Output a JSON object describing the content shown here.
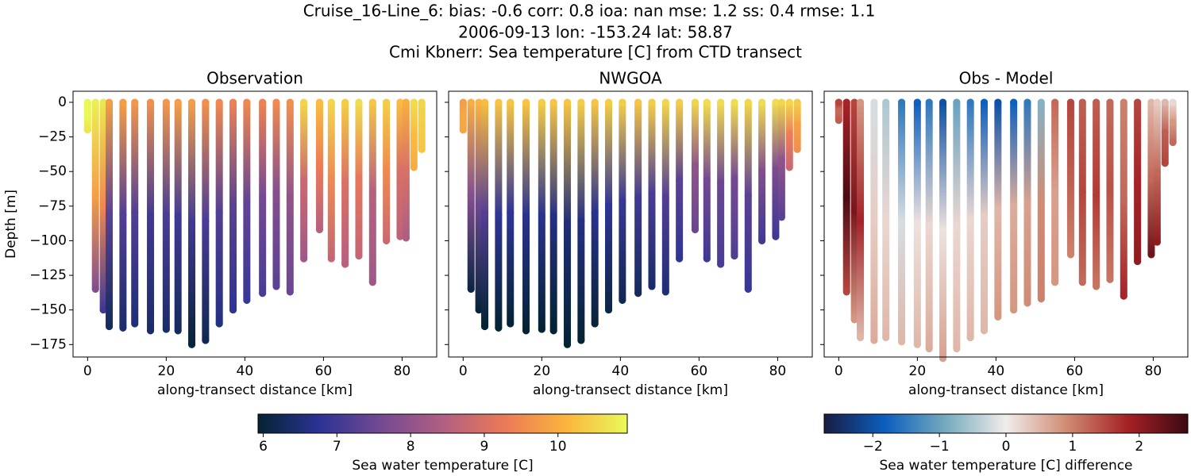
{
  "suptitle": [
    "Cruise_16-Line_6: bias: -0.6  corr: 0.8  ioa: nan  mse: 1.2  ss: 0.4  rmse: 1.1",
    "2006-09-13 lon: -153.24 lat: 58.87",
    "Cmi Kbnerr: Sea temperature [C] from CTD transect"
  ],
  "chart_data": [
    {
      "type": "scatter",
      "title": "Observation",
      "xlabel": "along-transect distance [km]",
      "ylabel": "Depth [m]",
      "x": [
        0,
        2,
        4,
        5.5,
        9,
        12,
        16,
        20,
        23,
        26.5,
        30,
        33.5,
        37,
        40.5,
        44.5,
        48,
        51.5,
        55,
        59,
        62,
        65.5,
        69,
        72.5,
        76,
        79.5,
        81,
        83,
        85
      ],
      "depth": [
        -20,
        -135,
        -150,
        -162,
        -163,
        -160,
        -165,
        -164,
        -165,
        -175,
        -172,
        -160,
        -150,
        -143,
        -138,
        -133,
        -137,
        -113,
        -92,
        -113,
        -117,
        -111,
        -130,
        -100,
        -97,
        -98,
        -47,
        -34
      ],
      "surface": [
        10.9,
        10.8,
        10.7,
        9.8,
        9.8,
        9.7,
        9.6,
        9.7,
        9.8,
        9.8,
        9.6,
        9.5,
        9.4,
        9.5,
        9.4,
        9.5,
        9.6,
        10.5,
        10.2,
        10.5,
        10.4,
        10.6,
        10.3,
        10.4,
        10.2,
        10.0,
        10.6,
        10.5
      ],
      "mid": [
        10.9,
        9.8,
        9.5,
        7.3,
        7.2,
        7.2,
        7.0,
        7.1,
        7.0,
        7.0,
        7.1,
        7.2,
        7.3,
        7.4,
        7.6,
        7.8,
        8.0,
        8.8,
        9.3,
        9.5,
        9.0,
        9.2,
        8.5,
        9.5,
        9.0,
        9.0,
        10.2,
        10.4
      ],
      "bottom": [
        10.7,
        7.8,
        7.0,
        6.3,
        6.4,
        6.5,
        6.4,
        6.4,
        6.3,
        6.0,
        6.2,
        6.6,
        6.8,
        6.9,
        7.1,
        7.3,
        7.5,
        8.2,
        8.5,
        8.7,
        8.5,
        8.7,
        8.2,
        8.8,
        8.6,
        8.4,
        10.0,
        10.3
      ],
      "xlim": [
        -3.7,
        88.8
      ],
      "ylim": [
        8,
        -184
      ],
      "xticks": [
        0,
        20,
        40,
        60,
        80
      ],
      "yticks": [
        0,
        {
          "value": -25,
          "label": "−25"
        },
        {
          "value": -50,
          "label": "−50"
        },
        {
          "value": -75,
          "label": "−75"
        },
        {
          "value": -100,
          "label": "−100"
        },
        {
          "value": -125,
          "label": "−125"
        },
        {
          "value": -150,
          "label": "−150"
        },
        {
          "value": -175,
          "label": "−175"
        }
      ],
      "ytick_labels": true,
      "colorbar": {
        "label": "Sea water temperature [C]",
        "lim": [
          5.93,
          10.94
        ],
        "ticks": [
          6,
          7,
          8,
          9,
          10
        ],
        "colormap": [
          "#042333",
          "#2c3395",
          "#744992",
          "#b15f82",
          "#eb7958",
          "#fbb43d",
          "#e8fa5b"
        ]
      }
    },
    {
      "type": "scatter",
      "title": "NWGOA",
      "xlabel": "along-transect distance [km]",
      "x": [
        0,
        2,
        4,
        5.5,
        9,
        12,
        16,
        20,
        23,
        26.5,
        30,
        33.5,
        37,
        40.5,
        44.5,
        48,
        51.5,
        55,
        59,
        62,
        65.5,
        69,
        72.5,
        76,
        79.5,
        81,
        83,
        85
      ],
      "depth": [
        -20,
        -135,
        -150,
        -162,
        -163,
        -160,
        -165,
        -164,
        -165,
        -175,
        -172,
        -160,
        -150,
        -143,
        -138,
        -133,
        -137,
        -113,
        -92,
        -113,
        -117,
        -111,
        -135,
        -100,
        -97,
        -83,
        -47,
        -34
      ],
      "surface": [
        9.8,
        10.0,
        10.1,
        10.2,
        10.3,
        10.3,
        10.3,
        10.4,
        10.3,
        10.3,
        10.4,
        10.3,
        10.4,
        10.4,
        10.3,
        10.4,
        10.5,
        10.4,
        10.5,
        10.6,
        10.6,
        10.6,
        10.5,
        10.6,
        10.6,
        10.5,
        10.5,
        10.4
      ],
      "mid": [
        9.9,
        7.8,
        7.5,
        7.2,
        6.8,
        6.8,
        6.7,
        6.7,
        6.6,
        6.5,
        6.6,
        6.7,
        6.8,
        6.9,
        7.0,
        7.1,
        7.2,
        7.3,
        8.0,
        7.6,
        7.5,
        7.6,
        7.3,
        7.8,
        7.7,
        8.0,
        9.3,
        9.8
      ],
      "bottom": [
        9.9,
        6.1,
        6.0,
        5.9,
        5.9,
        5.9,
        5.9,
        5.9,
        5.9,
        5.9,
        5.9,
        6.0,
        6.1,
        6.2,
        6.3,
        6.4,
        6.5,
        6.8,
        7.5,
        7.0,
        7.1,
        7.2,
        6.9,
        7.0,
        7.0,
        7.3,
        8.8,
        9.6
      ],
      "xlim": [
        -3.7,
        88.8
      ],
      "ylim": [
        8,
        -184
      ],
      "xticks": [
        0,
        20,
        40,
        60,
        80
      ],
      "yticks": [
        0,
        {
          "value": -25,
          "label": "−25"
        },
        {
          "value": -50,
          "label": "−50"
        },
        {
          "value": -75,
          "label": "−75"
        },
        {
          "value": -100,
          "label": "−100"
        },
        {
          "value": -125,
          "label": "−125"
        },
        {
          "value": -150,
          "label": "−150"
        },
        {
          "value": -175,
          "label": "−175"
        }
      ],
      "ytick_labels": false,
      "colorbar": {
        "colormap": [
          "#042333",
          "#2c3395",
          "#744992",
          "#b15f82",
          "#eb7958",
          "#fbb43d",
          "#e8fa5b"
        ],
        "lim": [
          5.93,
          10.94
        ]
      }
    },
    {
      "type": "scatter",
      "title": "Obs - Model",
      "xlabel": "along-transect distance [km]",
      "x": [
        0,
        2,
        4,
        5.5,
        9,
        12,
        16,
        20,
        23,
        26.5,
        30,
        33.5,
        37,
        40.5,
        44.5,
        48,
        51.5,
        55,
        59,
        62,
        65.5,
        69,
        72.5,
        76,
        79.5,
        81,
        83,
        85
      ],
      "depth": [
        -13,
        -137,
        -157,
        -170,
        -172,
        -170,
        -173,
        -175,
        -178,
        -185,
        -178,
        -170,
        -165,
        -155,
        -150,
        -145,
        -142,
        -130,
        -110,
        -130,
        -133,
        -128,
        -140,
        -115,
        -110,
        -101,
        -44,
        -29
      ],
      "surface": [
        1.5,
        1.8,
        1.5,
        0.8,
        -0.2,
        -0.5,
        -1.5,
        -1.8,
        -1.5,
        -2.0,
        -1.0,
        -1.5,
        -1.8,
        -2.0,
        -1.8,
        -1.5,
        -0.8,
        1.2,
        1.5,
        1.3,
        1.3,
        1.2,
        1.0,
        1.5,
        0.5,
        0.3,
        0.5,
        0.2
      ],
      "mid": [
        1.2,
        2.6,
        2.2,
        1.8,
        0.3,
        0.2,
        -0.2,
        0.1,
        0.2,
        0.1,
        0.2,
        0.2,
        0.3,
        0.5,
        0.6,
        0.7,
        0.9,
        0.7,
        1.3,
        1.5,
        1.6,
        1.4,
        1.2,
        1.8,
        1.2,
        1.2,
        1.3,
        0.8
      ],
      "bottom": [
        1.3,
        1.5,
        0.8,
        0.5,
        0.6,
        0.5,
        0.5,
        0.5,
        0.6,
        0.7,
        0.5,
        0.5,
        0.5,
        0.8,
        0.8,
        0.9,
        1.0,
        0.8,
        1.0,
        1.2,
        1.1,
        1.1,
        1.8,
        2.0,
        2.3,
        2.0,
        1.5,
        1.2
      ],
      "xlim": [
        -3.7,
        88.8
      ],
      "ylim": [
        8,
        -184
      ],
      "xticks": [
        0,
        20,
        40,
        60,
        80
      ],
      "yticks": [
        0,
        -25,
        -50,
        -75,
        -100,
        -125,
        -150,
        -175
      ],
      "ytick_labels": false,
      "colorbar": {
        "label": "Sea water temperature [C] difference",
        "lim": [
          -2.73,
          2.73
        ],
        "ticks": [
          {
            "value": -2,
            "label": "−2"
          },
          {
            "value": -1,
            "label": "−1"
          },
          0,
          1,
          2
        ],
        "colormap": [
          "#181c43",
          "#0c5ebe",
          "#75aabe",
          "#f1eceb",
          "#d08b73",
          "#a52125",
          "#3c0912"
        ]
      }
    }
  ]
}
